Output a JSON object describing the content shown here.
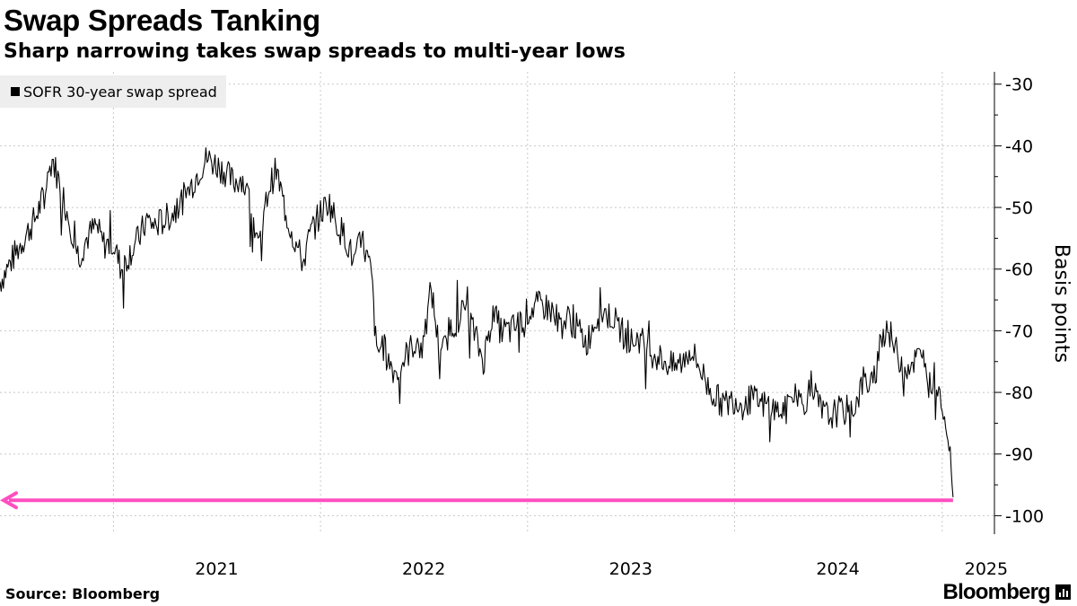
{
  "header": {
    "title": "Swap Spreads Tanking",
    "subtitle": "Sharp narrowing takes swap spreads to multi-year lows"
  },
  "footer": {
    "source": "Source: Bloomberg",
    "brand": "Bloomberg"
  },
  "colors": {
    "series": "#000000",
    "annotation_arrow": "#ff4fc1",
    "grid": "#c8c8c8",
    "legend_bg": "#eeeeee"
  },
  "chart_data": {
    "type": "line",
    "title": "Swap Spreads Tanking",
    "subtitle": "Sharp narrowing takes swap spreads to multi-year lows",
    "ylabel": "Basis points",
    "xlabel": "",
    "ylim": [
      -103,
      -28
    ],
    "y_ticks": [
      -30,
      -40,
      -50,
      -60,
      -70,
      -80,
      -90,
      -100
    ],
    "y_tick_labels": [
      "-30",
      "-40",
      "-50",
      "-60",
      "-70",
      "-80",
      "-90",
      "-100"
    ],
    "xlim": [
      "2020-06-15",
      "2025-04-03"
    ],
    "x_tick_labels": [
      "2021",
      "2022",
      "2023",
      "2024",
      "2025"
    ],
    "x_ticks": [
      "2021-01-01",
      "2022-01-01",
      "2023-01-01",
      "2024-01-01",
      "2025-01-01"
    ],
    "grid": true,
    "legend_position": "top-left",
    "series": [
      {
        "name": "SOFR 30-year swap spread",
        "points": [
          [
            "2020-06-15",
            -62
          ],
          [
            "2020-07-15",
            -57
          ],
          [
            "2020-08-15",
            -52
          ],
          [
            "2020-09-01",
            -48
          ],
          [
            "2020-09-15",
            -42
          ],
          [
            "2020-10-01",
            -47
          ],
          [
            "2020-10-15",
            -52
          ],
          [
            "2020-11-01",
            -58
          ],
          [
            "2020-11-15",
            -55
          ],
          [
            "2020-12-01",
            -53
          ],
          [
            "2020-12-15",
            -56
          ],
          [
            "2021-01-01",
            -56
          ],
          [
            "2021-01-15",
            -60
          ],
          [
            "2021-02-01",
            -57
          ],
          [
            "2021-02-15",
            -55
          ],
          [
            "2021-03-01",
            -52
          ],
          [
            "2021-03-15",
            -53
          ],
          [
            "2021-04-01",
            -52
          ],
          [
            "2021-04-15",
            -51
          ],
          [
            "2021-05-01",
            -49
          ],
          [
            "2021-05-15",
            -47
          ],
          [
            "2021-06-01",
            -44
          ],
          [
            "2021-06-15",
            -42
          ],
          [
            "2021-07-01",
            -43
          ],
          [
            "2021-07-15",
            -44
          ],
          [
            "2021-08-01",
            -46
          ],
          [
            "2021-08-15",
            -45
          ],
          [
            "2021-09-01",
            -50
          ],
          [
            "2021-09-15",
            -57
          ],
          [
            "2021-10-01",
            -47
          ],
          [
            "2021-10-15",
            -44
          ],
          [
            "2021-11-01",
            -51
          ],
          [
            "2021-11-15",
            -55
          ],
          [
            "2021-12-01",
            -59
          ],
          [
            "2021-12-15",
            -54
          ],
          [
            "2022-01-01",
            -51
          ],
          [
            "2022-01-15",
            -49
          ],
          [
            "2022-02-01",
            -53
          ],
          [
            "2022-02-15",
            -55
          ],
          [
            "2022-03-01",
            -59
          ],
          [
            "2022-03-15",
            -55
          ],
          [
            "2022-04-01",
            -61
          ],
          [
            "2022-04-10",
            -74
          ],
          [
            "2022-04-20",
            -72
          ],
          [
            "2022-05-01",
            -75
          ],
          [
            "2022-05-15",
            -77
          ],
          [
            "2022-06-01",
            -74
          ],
          [
            "2022-06-15",
            -72
          ],
          [
            "2022-07-01",
            -73
          ],
          [
            "2022-07-15",
            -63
          ],
          [
            "2022-08-01",
            -75
          ],
          [
            "2022-08-15",
            -70
          ],
          [
            "2022-09-01",
            -68
          ],
          [
            "2022-09-15",
            -66
          ],
          [
            "2022-10-01",
            -71
          ],
          [
            "2022-10-15",
            -75
          ],
          [
            "2022-11-01",
            -67
          ],
          [
            "2022-11-15",
            -70
          ],
          [
            "2022-12-01",
            -70
          ],
          [
            "2022-12-15",
            -69
          ],
          [
            "2023-01-01",
            -67
          ],
          [
            "2023-01-15",
            -66
          ],
          [
            "2023-02-01",
            -66
          ],
          [
            "2023-02-15",
            -67
          ],
          [
            "2023-03-01",
            -69
          ],
          [
            "2023-03-15",
            -68
          ],
          [
            "2023-04-01",
            -70
          ],
          [
            "2023-04-15",
            -72
          ],
          [
            "2023-05-01",
            -68
          ],
          [
            "2023-05-15",
            -67
          ],
          [
            "2023-06-01",
            -68
          ],
          [
            "2023-06-15",
            -70
          ],
          [
            "2023-07-01",
            -72
          ],
          [
            "2023-07-15",
            -71
          ],
          [
            "2023-08-01",
            -73
          ],
          [
            "2023-08-15",
            -74
          ],
          [
            "2023-09-01",
            -75
          ],
          [
            "2023-09-15",
            -76
          ],
          [
            "2023-10-01",
            -75
          ],
          [
            "2023-10-15",
            -73
          ],
          [
            "2023-11-01",
            -76
          ],
          [
            "2023-11-15",
            -79
          ],
          [
            "2023-12-01",
            -81
          ],
          [
            "2023-12-15",
            -82
          ],
          [
            "2024-01-01",
            -81
          ],
          [
            "2024-01-15",
            -82
          ],
          [
            "2024-02-01",
            -81
          ],
          [
            "2024-02-15",
            -82
          ],
          [
            "2024-03-01",
            -82
          ],
          [
            "2024-03-15",
            -83
          ],
          [
            "2024-04-01",
            -83
          ],
          [
            "2024-04-15",
            -80
          ],
          [
            "2024-05-01",
            -82
          ],
          [
            "2024-05-15",
            -79
          ],
          [
            "2024-06-01",
            -83
          ],
          [
            "2024-06-15",
            -84
          ],
          [
            "2024-07-01",
            -83
          ],
          [
            "2024-07-15",
            -83
          ],
          [
            "2024-08-01",
            -82
          ],
          [
            "2024-08-15",
            -78
          ],
          [
            "2024-09-01",
            -79
          ],
          [
            "2024-09-15",
            -72
          ],
          [
            "2024-09-25",
            -69
          ],
          [
            "2024-10-10",
            -73
          ],
          [
            "2024-10-25",
            -76
          ],
          [
            "2024-11-10",
            -75
          ],
          [
            "2024-11-25",
            -74
          ],
          [
            "2024-12-10",
            -79
          ],
          [
            "2024-12-20",
            -77
          ],
          [
            "2025-01-05",
            -84
          ],
          [
            "2025-01-15",
            -90
          ],
          [
            "2025-01-20",
            -97
          ]
        ]
      }
    ],
    "annotations": [
      {
        "type": "arrow",
        "direction": "left",
        "y": -97.5,
        "from_x": "2025-01-20",
        "to_x": "2020-06-15"
      }
    ]
  }
}
